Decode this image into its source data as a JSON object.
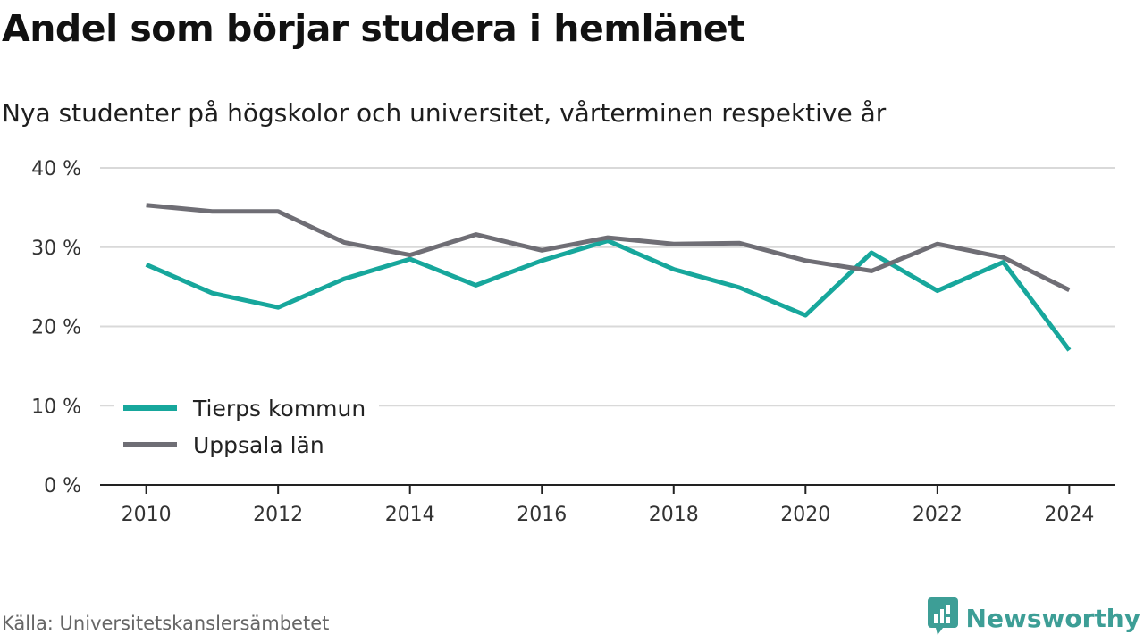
{
  "title": "Andel som börjar studera i hemlänet",
  "subtitle": "Nya studenter på högskolor och universitet, vårterminen respektive år",
  "source": "Källa: Universitetskanslersämbetet",
  "brand": "Newsworthy",
  "icon": "newsworthy-logo-icon",
  "colors": {
    "tierp": "#17a79c",
    "uppsala": "#6f6e75",
    "grid": "#d9d9d9",
    "axis": "#222222",
    "brand": "#3d9e96"
  },
  "chart_data": {
    "type": "line",
    "x": [
      2010,
      2011,
      2012,
      2013,
      2014,
      2015,
      2016,
      2017,
      2018,
      2019,
      2020,
      2021,
      2022,
      2023,
      2024
    ],
    "series": [
      {
        "name": "Tierps kommun",
        "color": "#17a79c",
        "values": [
          27.8,
          24.2,
          22.4,
          26.0,
          28.5,
          25.2,
          28.3,
          30.8,
          27.2,
          24.9,
          21.4,
          29.3,
          24.5,
          28.1,
          17.0
        ]
      },
      {
        "name": "Uppsala län",
        "color": "#6f6e75",
        "values": [
          35.3,
          34.5,
          34.5,
          30.6,
          29.0,
          31.6,
          29.6,
          31.2,
          30.4,
          30.5,
          28.3,
          27.0,
          30.4,
          28.7,
          24.6
        ]
      }
    ],
    "yticks": [
      0,
      10,
      20,
      30,
      40
    ],
    "ytick_labels": [
      "0 %",
      "10 %",
      "20 %",
      "30 %",
      "40 %"
    ],
    "xticks": [
      2010,
      2012,
      2014,
      2016,
      2018,
      2020,
      2022,
      2024
    ],
    "xtick_labels": [
      "2010",
      "2012",
      "2014",
      "2016",
      "2018",
      "2020",
      "2022",
      "2024"
    ],
    "ylim": [
      0,
      40
    ],
    "xlim": [
      2009.3,
      2024.7
    ],
    "grid": true,
    "legend_position": "bottom-left"
  }
}
